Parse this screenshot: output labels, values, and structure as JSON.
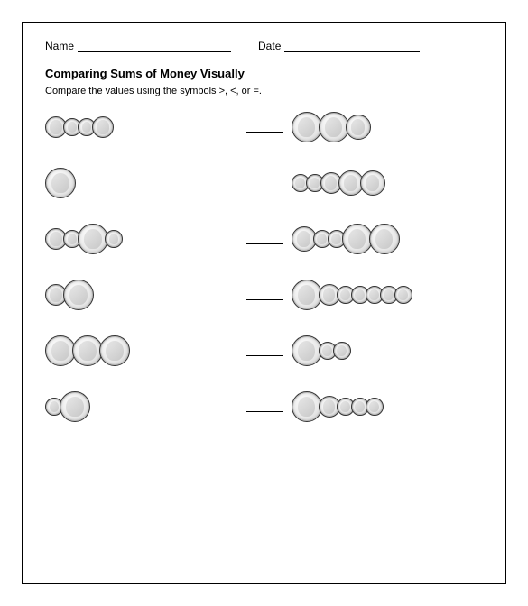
{
  "header": {
    "name_label": "Name",
    "date_label": "Date",
    "name_blank_width": 170,
    "date_blank_width": 150
  },
  "title": "Comparing Sums of Money Visually",
  "instruction": "Compare the values using the symbols >, <, or =.",
  "coin_sizes": {
    "quarter": 34,
    "nickel": 28,
    "penny": 24,
    "dime": 20
  },
  "coin_colors": {
    "border": "#333333",
    "fill_light": "#fafafa",
    "fill_mid": "#eaeaea",
    "fill_dark": "#d2d2d2"
  },
  "rows": [
    {
      "left": [
        "penny",
        "dime",
        "dime",
        "penny"
      ],
      "right": [
        "quarter",
        "quarter",
        "nickel"
      ]
    },
    {
      "left": [
        "quarter"
      ],
      "right": [
        "dime",
        "dime",
        "penny",
        "nickel",
        "nickel"
      ]
    },
    {
      "left": [
        "penny",
        "dime",
        "quarter",
        "dime"
      ],
      "right": [
        "nickel",
        "dime",
        "dime",
        "quarter",
        "quarter"
      ]
    },
    {
      "left": [
        "penny",
        "quarter"
      ],
      "right": [
        "quarter",
        "penny",
        "dime",
        "dime",
        "dime",
        "dime",
        "dime"
      ]
    },
    {
      "left": [
        "quarter",
        "quarter",
        "quarter"
      ],
      "right": [
        "quarter",
        "dime",
        "dime"
      ]
    },
    {
      "left": [
        "dime",
        "quarter"
      ],
      "right": [
        "quarter",
        "penny",
        "dime",
        "dime",
        "dime"
      ]
    }
  ],
  "answer_blank_width": 40
}
